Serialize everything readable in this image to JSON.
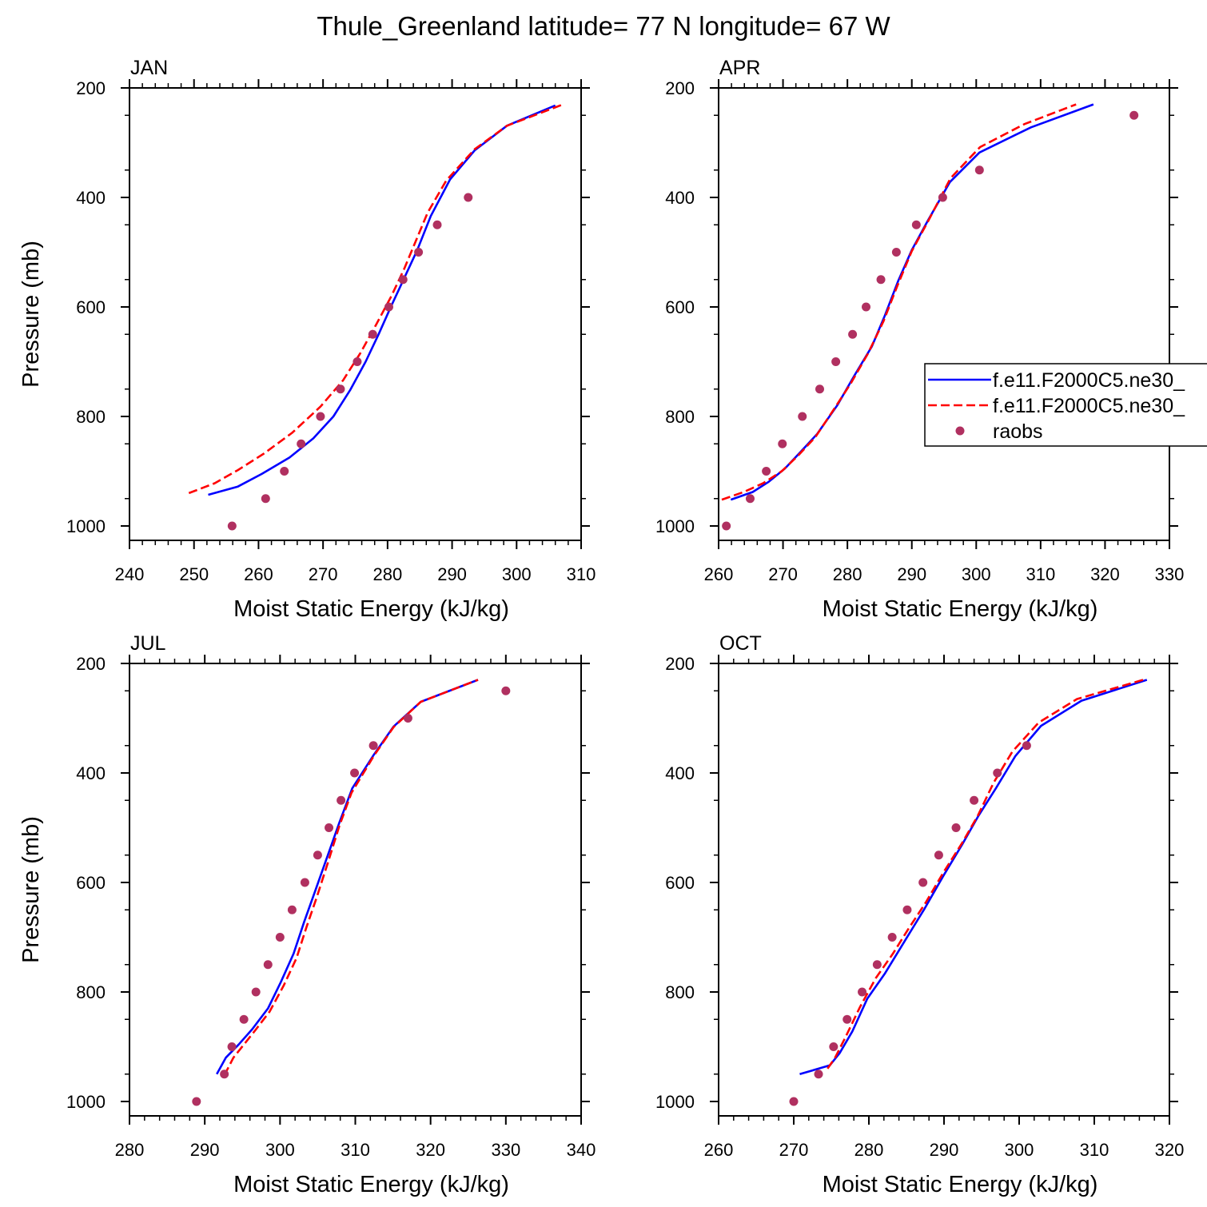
{
  "figure_title": "Thule_Greenland  latitude= 77 N longitude= 67 W",
  "colors": {
    "model1": "#0000ff",
    "model2": "#ff0000",
    "raobs": "#b03060",
    "axis": "#000000"
  },
  "legend": {
    "entries": [
      {
        "label": "f.e11.F2000C5.ne30_",
        "style": "solid",
        "color": "#0000ff"
      },
      {
        "label": "f.e11.F2000C5.ne30_",
        "style": "dashed",
        "color": "#ff0000"
      },
      {
        "label": "raobs",
        "style": "marker",
        "color": "#b03060"
      }
    ]
  },
  "chart_data": [
    {
      "type": "line",
      "panel_label": "JAN",
      "xlabel": "Moist Static Energy (kJ/kg)",
      "ylabel": "Pressure (mb)",
      "xlim": [
        240,
        310
      ],
      "ylim": [
        1000,
        200
      ],
      "xticks": [
        "240",
        "250",
        "260",
        "270",
        "280",
        "290",
        "300",
        "310"
      ],
      "yticks": [
        "200",
        "400",
        "600",
        "800",
        "1000"
      ],
      "series": [
        {
          "name": "f.e11.F2000C5.ne30_ (solid)",
          "style": "solid",
          "points": [
            [
              252.2,
              943
            ],
            [
              256.8,
              928
            ],
            [
              260.5,
              905
            ],
            [
              264.8,
              875
            ],
            [
              268.5,
              840
            ],
            [
              271.6,
              800
            ],
            [
              274.2,
              752
            ],
            [
              276.6,
              700
            ],
            [
              278.6,
              650
            ],
            [
              280.5,
              600
            ],
            [
              282.6,
              547
            ],
            [
              284.6,
              496
            ],
            [
              286.7,
              434
            ],
            [
              289.7,
              367
            ],
            [
              293.5,
              314
            ],
            [
              298.5,
              269
            ],
            [
              306,
              232
            ]
          ]
        },
        {
          "name": "f.e11.F2000C5.ne30_ (dashed)",
          "style": "dashed",
          "points": [
            [
              249.2,
              940
            ],
            [
              253.2,
              922
            ],
            [
              256.8,
              898
            ],
            [
              260.8,
              868
            ],
            [
              265.2,
              830
            ],
            [
              269.6,
              782
            ],
            [
              273.1,
              734
            ],
            [
              275.8,
              684
            ],
            [
              278.2,
              633
            ],
            [
              280.6,
              580
            ],
            [
              282.6,
              530
            ],
            [
              284.5,
              476
            ],
            [
              286.2,
              428
            ],
            [
              289.1,
              369
            ],
            [
              293.5,
              312
            ],
            [
              298.5,
              269
            ],
            [
              307.2,
              230
            ]
          ]
        },
        {
          "name": "raobs",
          "style": "marker",
          "points": [
            [
              255.9,
              1000
            ],
            [
              261.1,
              950
            ],
            [
              264,
              900
            ],
            [
              266.6,
              850
            ],
            [
              269.6,
              800
            ],
            [
              272.7,
              750
            ],
            [
              275.3,
              700
            ],
            [
              277.7,
              650
            ],
            [
              280.2,
              600
            ],
            [
              282.4,
              550
            ],
            [
              284.8,
              500
            ],
            [
              287.7,
              450
            ],
            [
              292.5,
              400
            ]
          ]
        }
      ]
    },
    {
      "type": "line",
      "panel_label": "APR",
      "xlabel": "Moist Static Energy (kJ/kg)",
      "ylabel": "",
      "xlim": [
        260,
        330
      ],
      "ylim": [
        1000,
        200
      ],
      "xticks": [
        "260",
        "270",
        "280",
        "290",
        "300",
        "310",
        "320",
        "330"
      ],
      "yticks": [
        "200",
        "400",
        "600",
        "800",
        "1000"
      ],
      "series": [
        {
          "name": "f.e11.F2000C5.ne30_ (solid)",
          "style": "solid",
          "points": [
            [
              261.9,
              952
            ],
            [
              265.3,
              938
            ],
            [
              267.7,
              920
            ],
            [
              270.3,
              895
            ],
            [
              272.8,
              864
            ],
            [
              275.3,
              832
            ],
            [
              278.4,
              780
            ],
            [
              281.1,
              725
            ],
            [
              283.8,
              672
            ],
            [
              285.8,
              616
            ],
            [
              287.9,
              552
            ],
            [
              290,
              496
            ],
            [
              292.5,
              442
            ],
            [
              295.9,
              372
            ],
            [
              300.5,
              318
            ],
            [
              308.5,
              272
            ],
            [
              318.2,
              230
            ]
          ]
        },
        {
          "name": "f.e11.F2000C5.ne30_ (dashed)",
          "style": "dashed",
          "points": [
            [
              260.5,
              952
            ],
            [
              263.9,
              938
            ],
            [
              266.9,
              922
            ],
            [
              269.8,
              900
            ],
            [
              272.3,
              872
            ],
            [
              275,
              838
            ],
            [
              277.9,
              787
            ],
            [
              280.5,
              740
            ],
            [
              283.2,
              685
            ],
            [
              285.6,
              626
            ],
            [
              287.8,
              560
            ],
            [
              290,
              498
            ],
            [
              292.5,
              444
            ],
            [
              296,
              365
            ],
            [
              300.6,
              308
            ],
            [
              307.5,
              266
            ],
            [
              315.5,
              230
            ]
          ]
        },
        {
          "name": "raobs",
          "style": "marker",
          "points": [
            [
              261.2,
              1000
            ],
            [
              264.9,
              950
            ],
            [
              267.4,
              900
            ],
            [
              269.9,
              850
            ],
            [
              273,
              800
            ],
            [
              275.7,
              750
            ],
            [
              278.2,
              700
            ],
            [
              280.8,
              650
            ],
            [
              282.9,
              600
            ],
            [
              285.2,
              550
            ],
            [
              287.6,
              500
            ],
            [
              290.7,
              450
            ],
            [
              294.8,
              400
            ],
            [
              300.5,
              350
            ],
            [
              324.5,
              250
            ]
          ]
        }
      ]
    },
    {
      "type": "line",
      "panel_label": "JUL",
      "xlabel": "Moist Static Energy (kJ/kg)",
      "ylabel": "Pressure (mb)",
      "xlim": [
        280,
        340
      ],
      "ylim": [
        1000,
        200
      ],
      "xticks": [
        "280",
        "290",
        "300",
        "310",
        "320",
        "330",
        "340"
      ],
      "yticks": [
        "200",
        "400",
        "600",
        "800",
        "1000"
      ],
      "series": [
        {
          "name": "f.e11.F2000C5.ne30_ (solid)",
          "style": "solid",
          "points": [
            [
              291.6,
              950
            ],
            [
              292.8,
              920
            ],
            [
              294.5,
              896
            ],
            [
              296.3,
              868
            ],
            [
              298.4,
              830
            ],
            [
              300.1,
              782
            ],
            [
              301.8,
              730
            ],
            [
              303.2,
              672
            ],
            [
              304.6,
              618
            ],
            [
              306.3,
              552
            ],
            [
              307.9,
              490
            ],
            [
              309.6,
              428
            ],
            [
              312.5,
              366
            ],
            [
              315.1,
              315
            ],
            [
              318.7,
              270
            ],
            [
              326.3,
              230
            ]
          ]
        },
        {
          "name": "f.e11.F2000C5.ne30_ (dashed)",
          "style": "dashed",
          "points": [
            [
              292.6,
              952
            ],
            [
              293.8,
              920
            ],
            [
              295.2,
              896
            ],
            [
              296.7,
              870
            ],
            [
              298.6,
              836
            ],
            [
              300.5,
              788
            ],
            [
              302.2,
              738
            ],
            [
              303.5,
              682
            ],
            [
              304.9,
              626
            ],
            [
              306.4,
              562
            ],
            [
              307.9,
              496
            ],
            [
              309.5,
              436
            ],
            [
              312.5,
              368
            ],
            [
              315.1,
              316
            ],
            [
              318.7,
              270
            ],
            [
              326.3,
              230
            ]
          ]
        },
        {
          "name": "raobs",
          "style": "marker",
          "points": [
            [
              288.9,
              1000
            ],
            [
              292.6,
              950
            ],
            [
              293.6,
              900
            ],
            [
              295.2,
              850
            ],
            [
              296.8,
              800
            ],
            [
              298.4,
              750
            ],
            [
              300,
              700
            ],
            [
              301.6,
              650
            ],
            [
              303.3,
              600
            ],
            [
              305,
              550
            ],
            [
              306.5,
              500
            ],
            [
              308.1,
              450
            ],
            [
              309.9,
              400
            ],
            [
              312.4,
              350
            ],
            [
              317,
              300
            ],
            [
              330,
              250
            ]
          ]
        }
      ]
    },
    {
      "type": "line",
      "panel_label": "OCT",
      "xlabel": "Moist Static Energy (kJ/kg)",
      "ylabel": "",
      "xlim": [
        260,
        320
      ],
      "ylim": [
        1000,
        200
      ],
      "xticks": [
        "260",
        "270",
        "280",
        "290",
        "300",
        "310",
        "320"
      ],
      "yticks": [
        "200",
        "400",
        "600",
        "800",
        "1000"
      ],
      "series": [
        {
          "name": "f.e11.F2000C5.ne30_ (solid)",
          "style": "solid",
          "points": [
            [
              270.8,
              950
            ],
            [
              272.8,
              942
            ],
            [
              274.8,
              934
            ],
            [
              276.1,
              912
            ],
            [
              277.8,
              872
            ],
            [
              279.8,
              812
            ],
            [
              282.1,
              767
            ],
            [
              284.9,
              704
            ],
            [
              287.4,
              648
            ],
            [
              289.9,
              588
            ],
            [
              292.4,
              531
            ],
            [
              294.6,
              478
            ],
            [
              296.9,
              428
            ],
            [
              299.5,
              369
            ],
            [
              302.9,
              314
            ],
            [
              308.3,
              268
            ],
            [
              317,
              230
            ]
          ]
        },
        {
          "name": "f.e11.F2000C5.ne30_ (dashed)",
          "style": "dashed",
          "points": [
            [
              274.5,
              940
            ],
            [
              275.5,
              920
            ],
            [
              276.9,
              882
            ],
            [
              278.8,
              828
            ],
            [
              280.9,
              775
            ],
            [
              283.2,
              730
            ],
            [
              285.3,
              684
            ],
            [
              287.6,
              636
            ],
            [
              289.9,
              582
            ],
            [
              292.4,
              528
            ],
            [
              294.5,
              478
            ],
            [
              296.6,
              418
            ],
            [
              299.1,
              361
            ],
            [
              302.6,
              308
            ],
            [
              307.7,
              265
            ],
            [
              316.5,
              230
            ]
          ]
        },
        {
          "name": "raobs",
          "style": "marker",
          "points": [
            [
              270,
              1000
            ],
            [
              273.3,
              950
            ],
            [
              275.3,
              900
            ],
            [
              277.1,
              850
            ],
            [
              279.1,
              800
            ],
            [
              281.1,
              750
            ],
            [
              283.1,
              700
            ],
            [
              285.1,
              650
            ],
            [
              287.2,
              600
            ],
            [
              289.3,
              550
            ],
            [
              291.6,
              500
            ],
            [
              294,
              450
            ],
            [
              297.1,
              400
            ],
            [
              301,
              350
            ]
          ]
        }
      ]
    }
  ]
}
